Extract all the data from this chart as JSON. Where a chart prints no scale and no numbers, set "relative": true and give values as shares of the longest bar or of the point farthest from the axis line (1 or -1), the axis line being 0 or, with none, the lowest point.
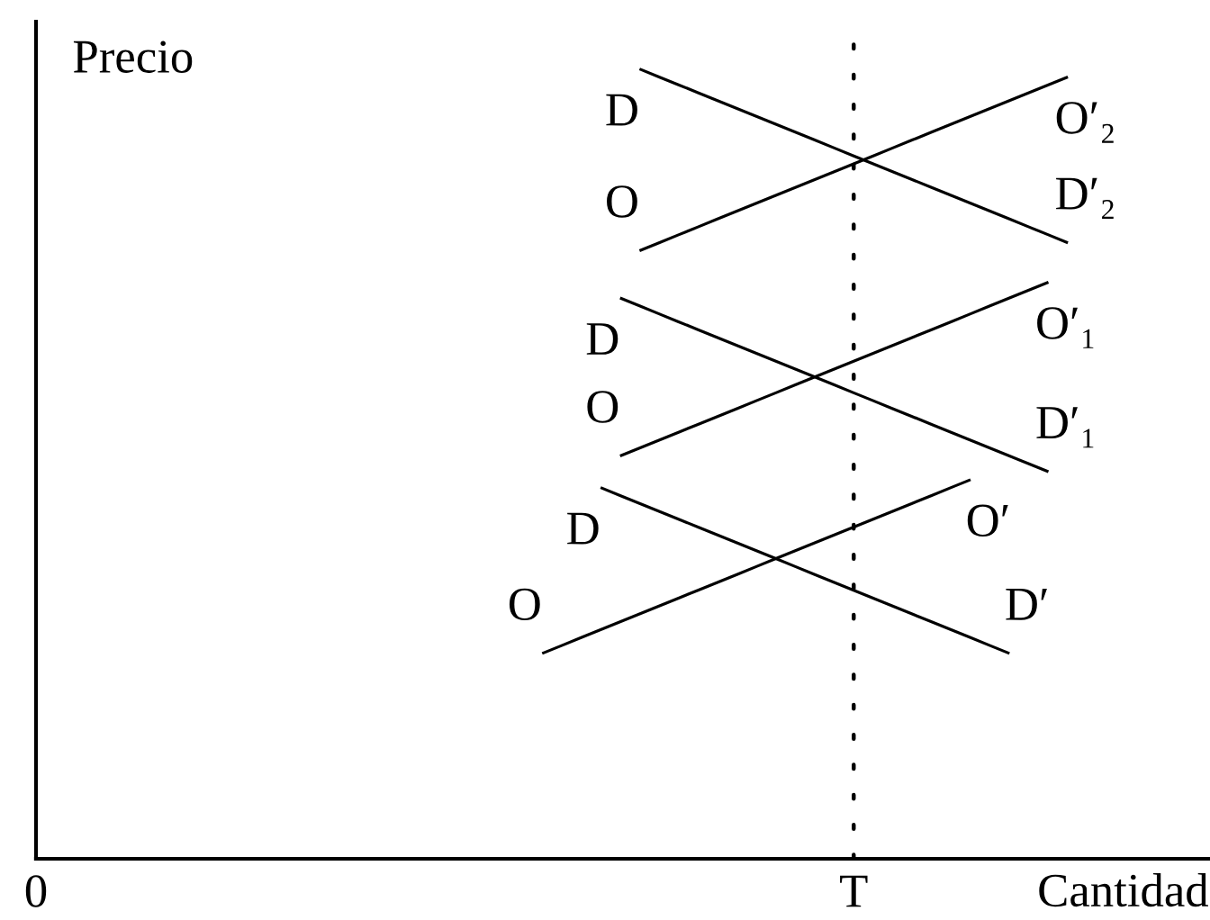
{
  "chart_data": {
    "type": "line",
    "relative": true,
    "xlabel": "Cantidad",
    "ylabel": "Precio",
    "categories": [
      "0",
      null,
      null,
      null,
      null,
      null,
      null,
      null,
      null,
      null,
      null,
      null,
      null,
      null,
      null,
      null,
      null,
      null,
      null,
      null,
      null,
      null,
      null,
      null,
      null,
      null,
      null,
      null,
      null,
      null,
      null,
      null,
      null,
      null,
      null,
      null,
      null,
      null,
      null,
      null,
      null,
      null,
      "T",
      null,
      null,
      null,
      null,
      null,
      null,
      null,
      null,
      null,
      null,
      null,
      null,
      null,
      null,
      null,
      null,
      null,
      null
    ],
    "series": [
      {
        "name": "D",
        "color": "#000000",
        "values": [
          null,
          null,
          null,
          null,
          null,
          null,
          null,
          null,
          null,
          null,
          null,
          null,
          null,
          null,
          null,
          null,
          null,
          null,
          null,
          null,
          null,
          null,
          null,
          null,
          null,
          null,
          null,
          null,
          null,
          null,
          null,
          1.0,
          0.99,
          0.98,
          0.97,
          0.96,
          0.95,
          0.94,
          0.93,
          0.92,
          0.91,
          0.9,
          0.89,
          0.88,
          0.87,
          0.86,
          0.85,
          0.84,
          0.83,
          0.82,
          0.81,
          0.8,
          0.79,
          0.78,
          null,
          null,
          null,
          null,
          null,
          null,
          null
        ]
      },
      {
        "name": "O",
        "color": "#000000",
        "values": [
          null,
          null,
          null,
          null,
          null,
          null,
          null,
          null,
          null,
          null,
          null,
          null,
          null,
          null,
          null,
          null,
          null,
          null,
          null,
          null,
          null,
          null,
          null,
          null,
          null,
          null,
          null,
          null,
          null,
          null,
          null,
          0.77,
          0.78,
          0.79,
          0.8,
          0.81,
          0.82,
          0.83,
          0.84,
          0.85,
          0.86,
          0.87,
          0.88,
          0.89,
          0.9,
          0.91,
          0.92,
          0.93,
          0.94,
          0.95,
          0.96,
          0.97,
          0.98,
          0.99,
          null,
          null,
          null,
          null,
          null,
          null,
          null
        ]
      },
      {
        "name": "D",
        "color": "#000000",
        "values": [
          null,
          null,
          null,
          null,
          null,
          null,
          null,
          null,
          null,
          null,
          null,
          null,
          null,
          null,
          null,
          null,
          null,
          null,
          null,
          null,
          null,
          null,
          null,
          null,
          null,
          null,
          null,
          null,
          null,
          null,
          0.71,
          0.7,
          0.69,
          0.68,
          0.67,
          0.66,
          0.65,
          0.64,
          0.63,
          0.62,
          0.61,
          0.6,
          0.59,
          0.58,
          0.57,
          0.56,
          0.55,
          0.54,
          0.53,
          0.52,
          0.51,
          0.5,
          0.49,
          null,
          null,
          null,
          null,
          null,
          null,
          null,
          null
        ]
      },
      {
        "name": "O",
        "color": "#000000",
        "values": [
          null,
          null,
          null,
          null,
          null,
          null,
          null,
          null,
          null,
          null,
          null,
          null,
          null,
          null,
          null,
          null,
          null,
          null,
          null,
          null,
          null,
          null,
          null,
          null,
          null,
          null,
          null,
          null,
          null,
          null,
          0.51,
          0.52,
          0.53,
          0.54,
          0.55,
          0.56,
          0.57,
          0.58,
          0.59,
          0.6,
          0.61,
          0.62,
          0.63,
          0.64,
          0.65,
          0.66,
          0.67,
          0.68,
          0.69,
          0.7,
          0.71,
          0.72,
          0.73,
          null,
          null,
          null,
          null,
          null,
          null,
          null,
          null
        ]
      },
      {
        "name": "D",
        "color": "#000000",
        "values": [
          null,
          null,
          null,
          null,
          null,
          null,
          null,
          null,
          null,
          null,
          null,
          null,
          null,
          null,
          null,
          null,
          null,
          null,
          null,
          null,
          null,
          null,
          null,
          null,
          null,
          null,
          null,
          null,
          null,
          0.47,
          0.46,
          0.45,
          0.44,
          0.43,
          0.42,
          0.41,
          0.4,
          0.39,
          0.38,
          0.37,
          0.36,
          0.35,
          0.34,
          0.33,
          0.32,
          0.31,
          0.3,
          0.29,
          0.28,
          0.27,
          0.26,
          null,
          null,
          null,
          null,
          null,
          null,
          null,
          null,
          null,
          null
        ]
      },
      {
        "name": "O",
        "color": "#000000",
        "values": [
          null,
          null,
          null,
          null,
          null,
          null,
          null,
          null,
          null,
          null,
          null,
          null,
          null,
          null,
          null,
          null,
          null,
          null,
          null,
          null,
          null,
          null,
          null,
          null,
          null,
          null,
          0.26,
          0.27,
          0.28,
          0.29,
          0.3,
          0.31,
          0.32,
          0.33,
          0.34,
          0.35,
          0.36,
          0.37,
          0.38,
          0.39,
          0.4,
          0.41,
          0.42,
          0.43,
          0.44,
          0.45,
          0.46,
          0.47,
          0.48,
          null,
          null,
          null,
          null,
          null,
          null,
          null,
          null,
          null,
          null,
          null,
          null
        ]
      }
    ],
    "ref_lines": [
      {
        "axis": "x",
        "value": "T",
        "color": "#000000",
        "line_style": "dotted"
      }
    ],
    "annotations": [
      "D′₂",
      "O′₂",
      "D′₁",
      "O′₁",
      "D′",
      "O′"
    ]
  }
}
